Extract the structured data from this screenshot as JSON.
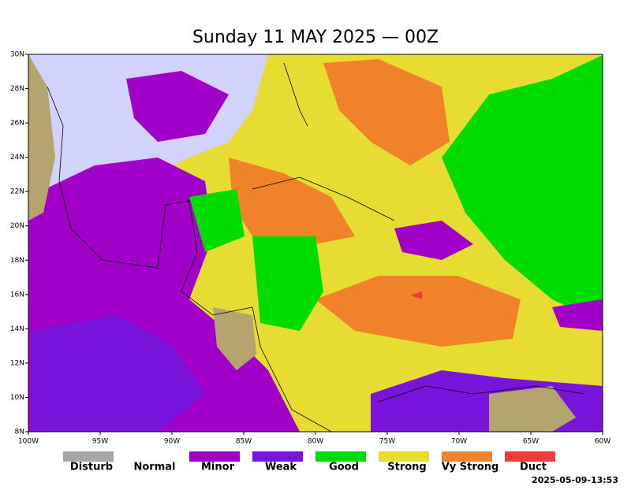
{
  "title": "Sunday 11 MAY 2025 — 00Z",
  "map": {
    "lon_ticks": [
      {
        "value": -100,
        "label": "100W"
      },
      {
        "value": -95,
        "label": "95W"
      },
      {
        "value": -90,
        "label": "90W"
      },
      {
        "value": -85,
        "label": "85W"
      },
      {
        "value": -80,
        "label": "80W"
      },
      {
        "value": -75,
        "label": "75W"
      },
      {
        "value": -70,
        "label": "70W"
      },
      {
        "value": -65,
        "label": "65W"
      },
      {
        "value": -60,
        "label": "60W"
      }
    ],
    "lat_ticks": [
      {
        "value": 8,
        "label": "8N"
      },
      {
        "value": 10,
        "label": "10N"
      },
      {
        "value": 12,
        "label": "12N"
      },
      {
        "value": 14,
        "label": "14N"
      },
      {
        "value": 16,
        "label": "16N"
      },
      {
        "value": 18,
        "label": "18N"
      },
      {
        "value": 20,
        "label": "20N"
      },
      {
        "value": 22,
        "label": "22N"
      },
      {
        "value": 24,
        "label": "24N"
      },
      {
        "value": 26,
        "label": "26N"
      },
      {
        "value": 28,
        "label": "28N"
      },
      {
        "value": 30,
        "label": "30N"
      }
    ]
  },
  "legend": [
    {
      "label": "Disturb",
      "color": "#a6a6a6"
    },
    {
      "label": "Normal",
      "color": null
    },
    {
      "label": "Minor",
      "color": "#a000c8"
    },
    {
      "label": "Weak",
      "color": "#7814dc"
    },
    {
      "label": "Good",
      "color": "#00dc00"
    },
    {
      "label": "Strong",
      "color": "#e6dc32"
    },
    {
      "label": "Vy Strong",
      "color": "#f0822a"
    },
    {
      "label": "Duct",
      "color": "#f03c3c"
    }
  ],
  "timestamp": "2025-05-09-13:53"
}
